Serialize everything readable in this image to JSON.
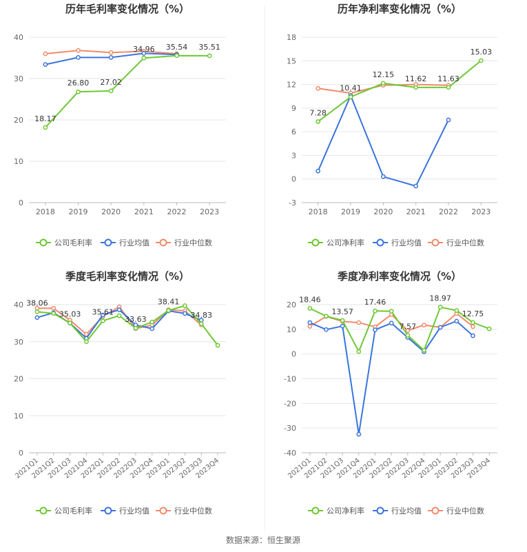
{
  "source_text": "数据来源：恒生聚源",
  "colors": {
    "company": "#6cc832",
    "industry_avg": "#3a74db",
    "industry_median": "#f08a6a"
  },
  "chart_data": [
    {
      "type": "line",
      "title": "历年毛利率变化情况（%）",
      "categories": [
        "2018",
        "2019",
        "2020",
        "2021",
        "2022",
        "2023"
      ],
      "ylim": [
        0,
        40
      ],
      "yticks": [
        0,
        10,
        20,
        30,
        40
      ],
      "legend": [
        "公司毛利率",
        "行业均值",
        "行业中位数"
      ],
      "legend_position": "bottom",
      "series": [
        {
          "name": "公司毛利率",
          "values": [
            18.17,
            26.8,
            27.02,
            34.96,
            35.54,
            35.51
          ],
          "labels": [
            "18.17",
            "26.80",
            "27.02",
            "34.96",
            "35.54",
            "35.51"
          ]
        },
        {
          "name": "行业均值",
          "values": [
            33.4,
            35.1,
            35.1,
            36.1,
            35.8,
            null
          ]
        },
        {
          "name": "行业中位数",
          "values": [
            36.0,
            36.8,
            36.3,
            36.6,
            36.0,
            null
          ]
        }
      ]
    },
    {
      "type": "line",
      "title": "历年净利率变化情况（%）",
      "categories": [
        "2018",
        "2019",
        "2020",
        "2021",
        "2022",
        "2023"
      ],
      "ylim": [
        -3,
        18
      ],
      "yticks": [
        -3,
        0,
        3,
        6,
        9,
        12,
        15,
        18
      ],
      "legend": [
        "公司净利率",
        "行业均值",
        "行业中位数"
      ],
      "legend_position": "bottom",
      "series": [
        {
          "name": "公司净利率",
          "values": [
            7.28,
            10.41,
            12.15,
            11.62,
            11.63,
            15.03
          ],
          "labels": [
            "7.28",
            "10.41",
            "12.15",
            "11.62",
            "11.63",
            "15.03"
          ]
        },
        {
          "name": "行业均值",
          "values": [
            1.0,
            10.6,
            0.3,
            -0.9,
            7.5,
            null
          ]
        },
        {
          "name": "行业中位数",
          "values": [
            11.5,
            10.9,
            11.9,
            12.0,
            11.9,
            null
          ]
        }
      ]
    },
    {
      "type": "line",
      "title": "季度毛利率变化情况（%）",
      "categories": [
        "2021Q1",
        "2021Q2",
        "2021Q3",
        "2021Q4",
        "2022Q1",
        "2022Q2",
        "2022Q3",
        "2022Q4",
        "2023Q1",
        "2023Q2",
        "2023Q3",
        "2023Q4"
      ],
      "ylim": [
        0,
        40
      ],
      "yticks": [
        0,
        10,
        20,
        30,
        40
      ],
      "legend": [
        "公司毛利率",
        "行业均值",
        "行业中位数"
      ],
      "legend_position": "bottom",
      "series": [
        {
          "name": "公司毛利率",
          "values": [
            38.06,
            37.6,
            35.03,
            30.0,
            35.61,
            37.0,
            33.63,
            35.3,
            38.41,
            39.7,
            34.83,
            29.0
          ],
          "labels": [
            "38.06",
            "",
            "35.03",
            "",
            "35.61",
            "",
            "33.63",
            "",
            "38.41",
            "",
            "34.83",
            ""
          ]
        },
        {
          "name": "行业均值",
          "values": [
            36.5,
            37.8,
            35.0,
            30.9,
            37.2,
            38.6,
            34.5,
            33.5,
            38.3,
            37.6,
            35.8,
            null
          ]
        },
        {
          "name": "行业中位数",
          "values": [
            39.0,
            39.0,
            35.8,
            32.0,
            36.8,
            39.4,
            33.5,
            34.5,
            38.6,
            38.3,
            34.5,
            null
          ]
        }
      ]
    },
    {
      "type": "line",
      "title": "季度净利率变化情况（%）",
      "categories": [
        "2021Q1",
        "2021Q2",
        "2021Q3",
        "2021Q4",
        "2022Q1",
        "2022Q2",
        "2022Q3",
        "2022Q4",
        "2023Q1",
        "2023Q2",
        "2023Q3",
        "2023Q4"
      ],
      "ylim": [
        -40,
        20
      ],
      "yticks": [
        -40,
        -30,
        -20,
        -10,
        0,
        10,
        20
      ],
      "legend": [
        "公司净利率",
        "行业均值",
        "行业中位数"
      ],
      "legend_position": "bottom",
      "series": [
        {
          "name": "公司净利率",
          "values": [
            18.46,
            15.3,
            13.57,
            1.0,
            17.46,
            17.3,
            7.57,
            1.5,
            18.97,
            17.6,
            12.75,
            10.2
          ],
          "labels": [
            "18.46",
            "",
            "13.57",
            "",
            "17.46",
            "",
            "7.57",
            "",
            "18.97",
            "",
            "12.75",
            ""
          ]
        },
        {
          "name": "行业均值",
          "values": [
            12.7,
            9.9,
            11.3,
            -32.5,
            9.8,
            12.5,
            6.7,
            0.9,
            10.8,
            13.3,
            7.4,
            null
          ]
        },
        {
          "name": "行业中位数",
          "values": [
            11.2,
            15.2,
            13.2,
            12.7,
            11.0,
            16.0,
            9.5,
            11.7,
            10.8,
            16.4,
            11.1,
            null
          ]
        }
      ]
    }
  ]
}
